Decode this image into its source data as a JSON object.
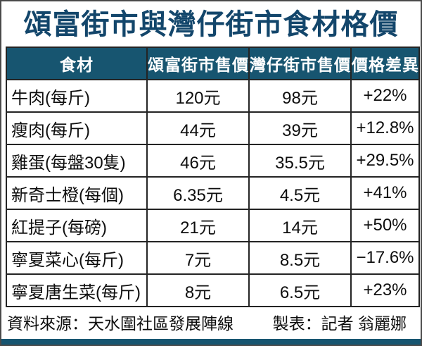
{
  "title": "頌富街市與灣仔街市食材格價",
  "colors": {
    "header_bg": "#175570",
    "title_text": "#13466b",
    "bottom_bar": "#175570",
    "grid_border": "#242424"
  },
  "chart_data": {
    "type": "table",
    "title": "頌富街市與灣仔街市食材格價",
    "columns": [
      "食材",
      "頌富街市售價",
      "灣仔街市售價",
      "價格差異"
    ],
    "rows": [
      [
        "牛肉(每斤)",
        "120元",
        "98元",
        "+22%"
      ],
      [
        "瘦肉(每斤)",
        "44元",
        "39元",
        "+12.8%"
      ],
      [
        "雞蛋(每盤30隻)",
        "46元",
        "35.5元",
        "+29.5%"
      ],
      [
        "新奇士橙(每個)",
        "6.35元",
        "4.5元",
        "+41%"
      ],
      [
        "紅提子(每磅)",
        "21元",
        "14元",
        "+50%"
      ],
      [
        "寧夏菜心(每斤)",
        "7元",
        "8.5元",
        "−17.6%"
      ],
      [
        "寧夏唐生菜(每斤)",
        "8元",
        "6.5元",
        "+23%"
      ]
    ]
  },
  "footer": {
    "source": "資料來源：天水圍社區發展陣線",
    "credit": "製表：記者 翁麗娜"
  }
}
